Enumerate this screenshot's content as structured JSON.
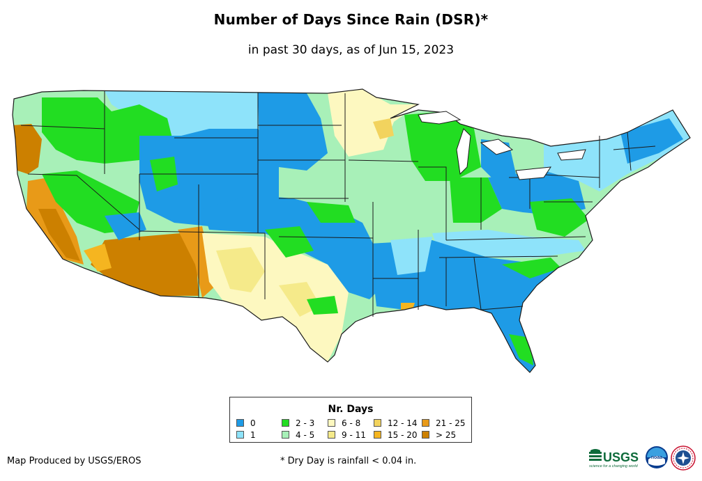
{
  "title": "Number of Days Since Rain (DSR)*",
  "subtitle": "in past 30 days, as of Jun 15, 2023",
  "legend": {
    "title": "Nr. Days",
    "items": [
      {
        "label": "0",
        "color": "#1e9be6"
      },
      {
        "label": "1",
        "color": "#8ee3fa"
      },
      {
        "label": "2 - 3",
        "color": "#22dd22"
      },
      {
        "label": "4 - 5",
        "color": "#a8f0b8"
      },
      {
        "label": "6 - 8",
        "color": "#fdf8c0"
      },
      {
        "label": "9 - 11",
        "color": "#f5ea8a"
      },
      {
        "label": "12 - 14",
        "color": "#f2d35e"
      },
      {
        "label": "15 - 20",
        "color": "#f5b520"
      },
      {
        "label": "21 - 25",
        "color": "#e89a18"
      },
      {
        "label": "> 25",
        "color": "#cc8000"
      }
    ]
  },
  "credit": "Map Produced by USGS/EROS",
  "footnote": "* Dry Day is rainfall < 0.04 in.",
  "logos": {
    "usgs_text": "USGS",
    "usgs_tagline": "science for a changing world",
    "noaa_text": "noaa"
  },
  "colors": {
    "state_border": "#1a1a1a",
    "water": "#ffffff"
  }
}
